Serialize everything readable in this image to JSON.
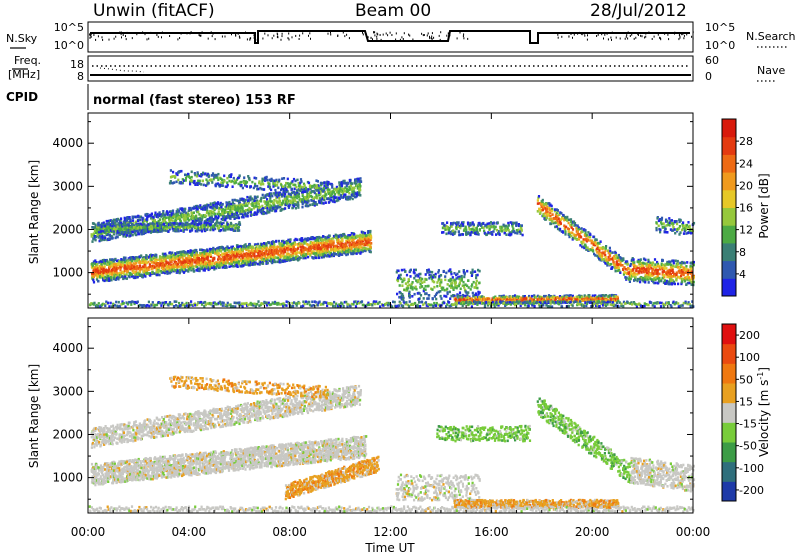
{
  "header": {
    "station": "Unwin (fitACF)",
    "beam": "Beam 00",
    "date": "28/Jul/2012"
  },
  "sky_panel": {
    "left_label": "N.Sky",
    "left_ticks": [
      "10^5",
      "10^0"
    ],
    "right_ticks": [
      "10^5",
      "10^0"
    ],
    "right_label": "N.Search"
  },
  "freq_panel": {
    "left_label_1": "Freq.",
    "left_label_2": "[MHz]",
    "left_ticks": [
      "18",
      "8"
    ],
    "right_ticks": [
      "60",
      "0"
    ],
    "right_label": "Nave"
  },
  "cpid_panel": {
    "left_label": "CPID",
    "text": "normal (fast stereo) 153 RF"
  },
  "chart_data": [
    {
      "type": "heatmap",
      "name": "power",
      "ylabel": "Slant Range [km]",
      "yticks": [
        "1000",
        "2000",
        "3000",
        "4000"
      ],
      "ylim": [
        180,
        4700
      ],
      "colorbar_label": "Power [dB]",
      "colorbar_ticks": [
        "4",
        "8",
        "12",
        "16",
        "20",
        "24",
        "28"
      ],
      "colorbar_colors": [
        "#1f24e6",
        "#2f58b0",
        "#3a7f75",
        "#4caa44",
        "#96c83c",
        "#e6c828",
        "#f09a1e",
        "#ee6a14",
        "#e43a10",
        "#d81a0c"
      ]
    },
    {
      "type": "heatmap",
      "name": "velocity",
      "ylabel": "Slant Range [km]",
      "yticks": [
        "1000",
        "2000",
        "3000",
        "4000"
      ],
      "ylim": [
        180,
        4700
      ],
      "colorbar_label": "Velocity [m s",
      "colorbar_label_sup": "-1",
      "colorbar_label_end": "]",
      "colorbar_ticks": [
        "200",
        "100",
        "50",
        "15",
        "-15",
        "-50",
        "-100",
        "-200"
      ],
      "colorbar_colors": [
        "#1e3aa8",
        "#2f6f7c",
        "#3c9c46",
        "#78cc3a",
        "#c8c8c4",
        "#e8a020",
        "#ef7810",
        "#ea4a10",
        "#e01010"
      ]
    }
  ],
  "xaxis": {
    "ticks": [
      "00:00",
      "04:00",
      "08:00",
      "12:00",
      "16:00",
      "20:00",
      "00:00"
    ],
    "label": "Time UT"
  }
}
